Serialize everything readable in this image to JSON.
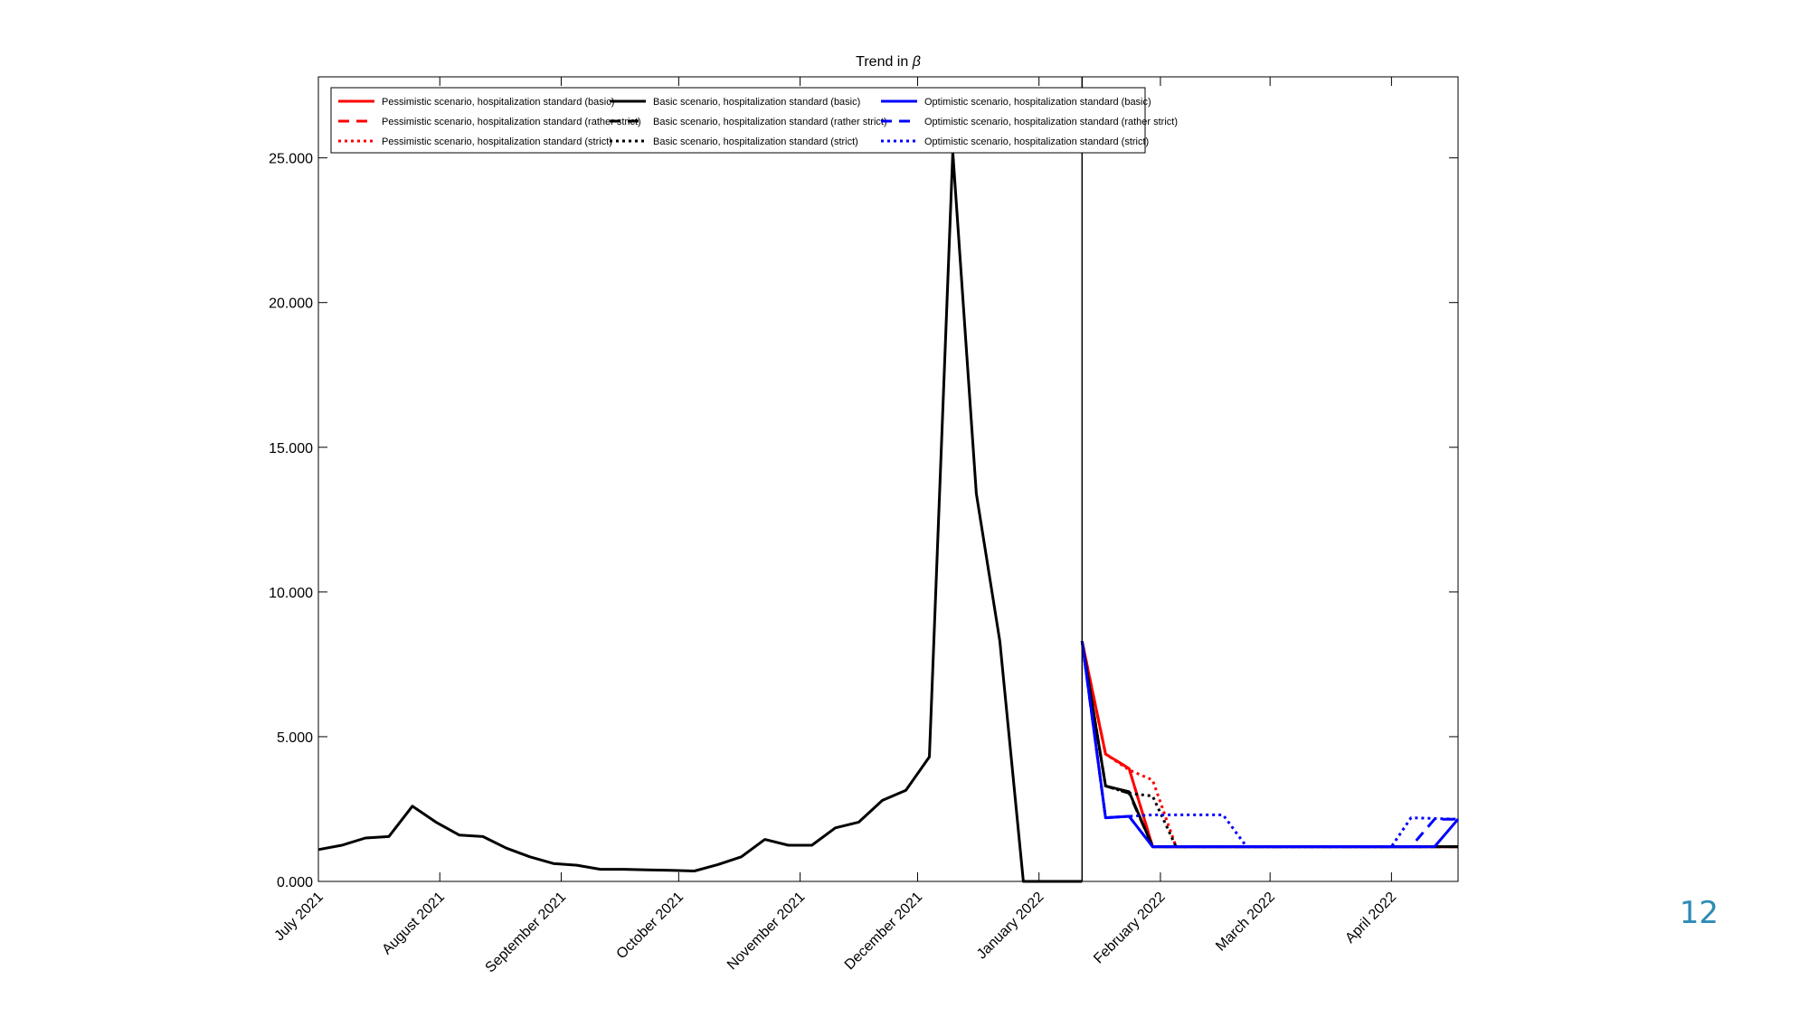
{
  "slide": {
    "page_number": "12"
  },
  "chart_data": {
    "type": "line",
    "title": "Trend in β",
    "xlabel": "",
    "ylabel": "",
    "x_tick_labels": [
      "July 2021",
      "August 2021",
      "September 2021",
      "October 2021",
      "November 2021",
      "December 2021",
      "January 2022",
      "February 2022",
      "March 2022",
      "April 2022"
    ],
    "x_tick_dates": [
      "2021-07-01",
      "2021-08-01",
      "2021-09-01",
      "2021-10-01",
      "2021-11-01",
      "2021-12-01",
      "2022-01-01",
      "2022-02-01",
      "2022-03-01",
      "2022-04-01"
    ],
    "xlim": [
      "2021-07-01",
      "2022-04-18"
    ],
    "y_tick_labels": [
      "0.000",
      "5.000",
      "10.000",
      "15.000",
      "20.000",
      "25.000"
    ],
    "y_tick_values": [
      0,
      5000,
      10000,
      15000,
      20000,
      25000
    ],
    "ylim": [
      0,
      27800
    ],
    "vertical_line_date": "2022-01-12",
    "grid": false,
    "legend_position": "top-left",
    "colors": {
      "pessimistic": "#ff0000",
      "basic": "#000000",
      "optimistic": "#0000ff",
      "page_number": "#2e8bb5"
    },
    "legend": [
      [
        "Pessimistic scenario, hospitalization standard (basic)",
        "Basic scenario, hospitalization standard (basic)",
        "Optimistic scenario, hospitalization standard (basic)"
      ],
      [
        "Pessimistic scenario, hospitalization standard (rather strict)",
        "Basic scenario, hospitalization standard (rather strict)",
        "Optimistic scenario, hospitalization standard (rather strict)"
      ],
      [
        "Pessimistic scenario, hospitalization standard (strict)",
        "Basic scenario, hospitalization standard (strict)",
        "Optimistic scenario, hospitalization standard (strict)"
      ]
    ],
    "history": {
      "x": [
        "2021-07-01",
        "2021-07-07",
        "2021-07-13",
        "2021-07-19",
        "2021-07-25",
        "2021-07-31",
        "2021-08-06",
        "2021-08-12",
        "2021-08-18",
        "2021-08-24",
        "2021-08-30",
        "2021-09-05",
        "2021-09-11",
        "2021-09-17",
        "2021-09-23",
        "2021-09-29",
        "2021-10-05",
        "2021-10-11",
        "2021-10-17",
        "2021-10-23",
        "2021-10-29",
        "2021-11-04",
        "2021-11-10",
        "2021-11-16",
        "2021-11-22",
        "2021-11-28",
        "2021-12-04",
        "2021-12-10",
        "2021-12-16",
        "2021-12-22",
        "2021-12-28",
        "2022-01-03",
        "2022-01-12"
      ],
      "y": [
        1100,
        1250,
        1500,
        1550,
        2600,
        2050,
        1600,
        1550,
        1150,
        850,
        620,
        560,
        420,
        420,
        400,
        380,
        360,
        580,
        850,
        1450,
        1250,
        1250,
        1850,
        2050,
        2800,
        3150,
        4300,
        25200,
        13400,
        8300,
        0,
        0,
        0
      ]
    },
    "series": [
      {
        "name": "Pessimistic scenario, hospitalization standard (basic)",
        "color": "#ff0000",
        "style": "solid",
        "x": [
          "2022-01-12",
          "2022-01-18",
          "2022-01-24",
          "2022-01-30",
          "2022-04-18"
        ],
        "y": [
          8300,
          4400,
          3900,
          1200,
          1200
        ]
      },
      {
        "name": "Pessimistic scenario, hospitalization standard (rather strict)",
        "color": "#ff0000",
        "style": "dashed",
        "x": [
          "2022-01-12",
          "2022-01-18",
          "2022-01-24",
          "2022-01-30",
          "2022-04-18"
        ],
        "y": [
          8300,
          4400,
          3900,
          1200,
          1200
        ]
      },
      {
        "name": "Pessimistic scenario, hospitalization standard (strict)",
        "color": "#ff0000",
        "style": "dotted",
        "x": [
          "2022-01-12",
          "2022-01-18",
          "2022-01-24",
          "2022-01-30",
          "2022-02-05",
          "2022-04-18"
        ],
        "y": [
          8300,
          4400,
          3850,
          3500,
          1200,
          1200
        ]
      },
      {
        "name": "Basic scenario, hospitalization standard (basic)",
        "color": "#000000",
        "style": "solid",
        "x": [
          "2022-01-12",
          "2022-01-18",
          "2022-01-24",
          "2022-01-30",
          "2022-04-18"
        ],
        "y": [
          8300,
          3300,
          3100,
          1200,
          1200
        ]
      },
      {
        "name": "Basic scenario, hospitalization standard (rather strict)",
        "color": "#000000",
        "style": "dashed",
        "x": [
          "2022-01-12",
          "2022-01-18",
          "2022-01-24",
          "2022-01-30",
          "2022-04-18"
        ],
        "y": [
          8300,
          3300,
          3050,
          1200,
          1200
        ]
      },
      {
        "name": "Basic scenario, hospitalization standard (strict)",
        "color": "#000000",
        "style": "dotted",
        "x": [
          "2022-01-12",
          "2022-01-18",
          "2022-01-24",
          "2022-01-30",
          "2022-02-05",
          "2022-04-18"
        ],
        "y": [
          8300,
          3300,
          3050,
          2950,
          1200,
          1200
        ]
      },
      {
        "name": "Optimistic scenario, hospitalization standard (basic)",
        "color": "#0000ff",
        "style": "solid",
        "x": [
          "2022-01-12",
          "2022-01-18",
          "2022-01-24",
          "2022-01-30",
          "2022-04-12",
          "2022-04-18"
        ],
        "y": [
          8300,
          2200,
          2250,
          1200,
          1200,
          2150
        ]
      },
      {
        "name": "Optimistic scenario, hospitalization standard (rather strict)",
        "color": "#0000ff",
        "style": "dashed",
        "x": [
          "2022-01-12",
          "2022-01-18",
          "2022-01-24",
          "2022-01-30",
          "2022-04-06",
          "2022-04-12",
          "2022-04-18"
        ],
        "y": [
          8300,
          2200,
          2250,
          1200,
          1200,
          2150,
          2150
        ]
      },
      {
        "name": "Optimistic scenario, hospitalization standard (strict)",
        "color": "#0000ff",
        "style": "dotted",
        "x": [
          "2022-01-12",
          "2022-01-18",
          "2022-01-24",
          "2022-01-30",
          "2022-02-05",
          "2022-02-11",
          "2022-02-17",
          "2022-02-23",
          "2022-04-01",
          "2022-04-06",
          "2022-04-18"
        ],
        "y": [
          8300,
          2200,
          2250,
          2300,
          2300,
          2300,
          2300,
          1200,
          1200,
          2200,
          2150
        ]
      }
    ]
  }
}
